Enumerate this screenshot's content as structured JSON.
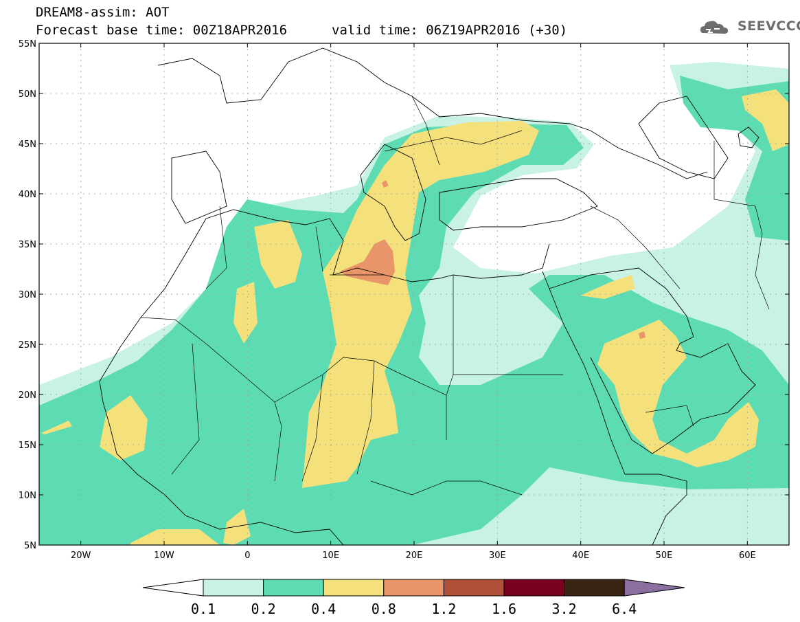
{
  "header": {
    "title": "DREAM8-assim: AOT",
    "base_time": "Forecast base time: 00Z18APR2016",
    "valid_time": "valid time: 06Z19APR2016 (+30)"
  },
  "logo": {
    "text": "SEEVCCC",
    "icon": "cloud-logo-icon"
  },
  "map": {
    "lon_range": [
      -25,
      65
    ],
    "lat_range": [
      5,
      55
    ],
    "lat_ticks": [
      {
        "v": 55,
        "label": "55N"
      },
      {
        "v": 50,
        "label": "50N"
      },
      {
        "v": 45,
        "label": "45N"
      },
      {
        "v": 40,
        "label": "40N"
      },
      {
        "v": 35,
        "label": "35N"
      },
      {
        "v": 30,
        "label": "30N"
      },
      {
        "v": 25,
        "label": "25N"
      },
      {
        "v": 20,
        "label": "20N"
      },
      {
        "v": 15,
        "label": "15N"
      },
      {
        "v": 10,
        "label": "10N"
      },
      {
        "v": 5,
        "label": "5N"
      }
    ],
    "lon_ticks": [
      {
        "v": -20,
        "label": "20W"
      },
      {
        "v": -10,
        "label": "10W"
      },
      {
        "v": 0,
        "label": "0"
      },
      {
        "v": 10,
        "label": "10E"
      },
      {
        "v": 20,
        "label": "20E"
      },
      {
        "v": 30,
        "label": "30E"
      },
      {
        "v": 40,
        "label": "40E"
      },
      {
        "v": 50,
        "label": "50E"
      },
      {
        "v": 60,
        "label": "60E"
      }
    ],
    "grid": true
  },
  "colorbar": {
    "labels": [
      "0.1",
      "0.2",
      "0.4",
      "0.8",
      "1.2",
      "1.6",
      "3.2",
      "6.4"
    ],
    "colors": [
      "#ffffff",
      "#c9f2e6",
      "#5ddcb4",
      "#f4e17c",
      "#e9956a",
      "#b05038",
      "#780021",
      "#3a2515",
      "#8a6fa0"
    ]
  },
  "palette": {
    "c1": "#c9f2e6",
    "c2": "#5ddcb4",
    "c3": "#f4e17c",
    "c4": "#e9956a"
  }
}
